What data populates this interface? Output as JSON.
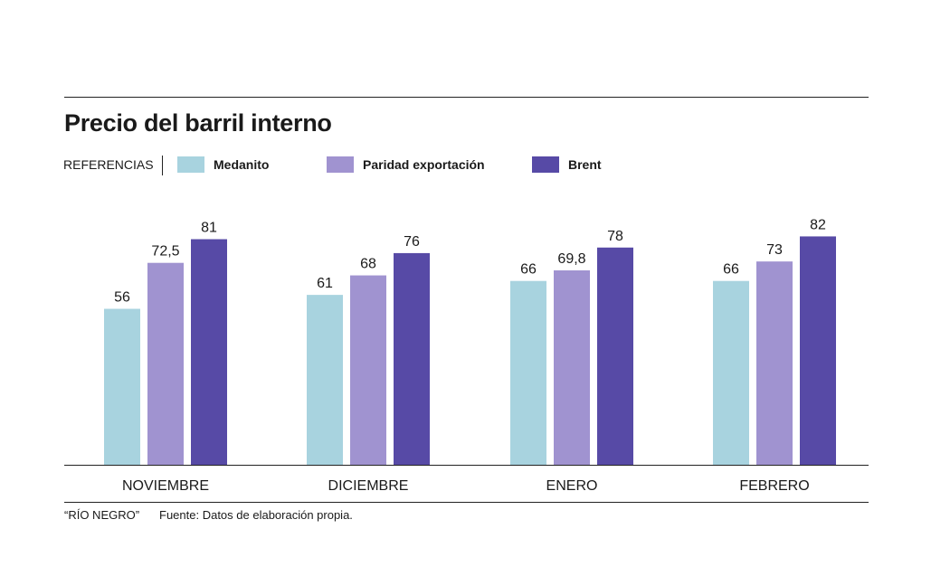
{
  "title": "Precio del barril interno",
  "legend": {
    "label": "REFERENCIAS"
  },
  "footer": {
    "credit": "“RÍO NEGRO”",
    "source": "Fuente: Datos de elaboración propia."
  },
  "chart_data": {
    "type": "bar",
    "title": "Precio del barril interno",
    "categories": [
      "NOVIEMBRE",
      "DICIEMBRE",
      "ENERO",
      "FEBRERO"
    ],
    "series": [
      {
        "name": "Medanito",
        "values": [
          56,
          61,
          66,
          66
        ],
        "labels": [
          "56",
          "61",
          "66",
          "66"
        ],
        "color": "#a8d3df"
      },
      {
        "name": "Paridad exportación",
        "values": [
          72.5,
          68,
          69.8,
          73
        ],
        "labels": [
          "72,5",
          "68",
          "69,8",
          "73"
        ],
        "color": "#a093d0"
      },
      {
        "name": "Brent",
        "values": [
          81,
          76,
          78,
          82
        ],
        "labels": [
          "81",
          "76",
          "78",
          "82"
        ],
        "color": "#574aa6"
      }
    ],
    "ylim": [
      0,
      82
    ],
    "grid": false,
    "legend_position": "top-left"
  }
}
